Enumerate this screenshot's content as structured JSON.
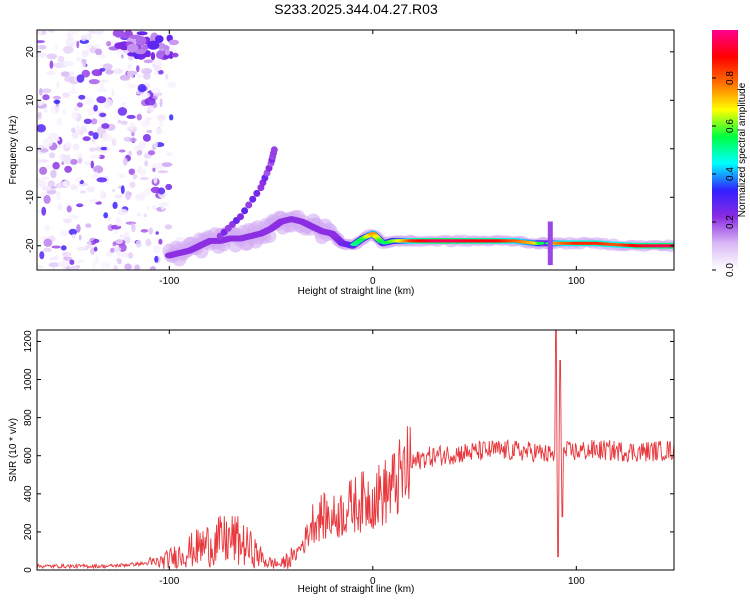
{
  "figure": {
    "title": "S233.2025.344.04.27.R03"
  },
  "chart_data": [
    {
      "type": "heatmap",
      "title": "",
      "xlabel": "Height of straight line (km)",
      "ylabel": "Frequency (Hz)",
      "xlim": [
        -165,
        148
      ],
      "ylim": [
        -25,
        24.5
      ],
      "xticks": [
        -100,
        0,
        100
      ],
      "yticks": [
        -20,
        -10,
        0,
        10,
        20
      ],
      "colorbar": {
        "label": "Normalized spectral amplitude",
        "range": [
          0,
          1
        ],
        "ticks": [
          0.0,
          0.2,
          0.4,
          0.6,
          0.8
        ],
        "colors": [
          "#ffffff",
          "#d9b8f5",
          "#8a2be2",
          "#3020ff",
          "#00ffff",
          "#00ff40",
          "#ffff00",
          "#ff7000",
          "#ff0000",
          "#ff0090"
        ]
      },
      "ridge": {
        "name": "",
        "points": [
          [
            -100,
            -22
          ],
          [
            -95,
            -21.5
          ],
          [
            -90,
            -21
          ],
          [
            -85,
            -20
          ],
          [
            -80,
            -19
          ],
          [
            -75,
            -19
          ],
          [
            -70,
            -18.5
          ],
          [
            -65,
            -18.5
          ],
          [
            -60,
            -18
          ],
          [
            -55,
            -17.5
          ],
          [
            -50,
            -16.5
          ],
          [
            -45,
            -15
          ],
          [
            -40,
            -14.5
          ],
          [
            -35,
            -15
          ],
          [
            -30,
            -16
          ],
          [
            -25,
            -17
          ],
          [
            -20,
            -17.5
          ],
          [
            -15,
            -19.5
          ],
          [
            -10,
            -20
          ],
          [
            -5,
            -18.5
          ],
          [
            0,
            -17.5
          ],
          [
            5,
            -19.5
          ],
          [
            10,
            -19
          ],
          [
            15,
            -19
          ],
          [
            20,
            -19
          ],
          [
            30,
            -19
          ],
          [
            40,
            -19
          ],
          [
            50,
            -19
          ],
          [
            60,
            -19
          ],
          [
            70,
            -19
          ],
          [
            80,
            -19.5
          ],
          [
            85,
            -19.5
          ],
          [
            90,
            -19.5
          ],
          [
            100,
            -19.5
          ],
          [
            110,
            -19.5
          ],
          [
            120,
            -19.8
          ],
          [
            130,
            -20
          ],
          [
            140,
            -20
          ],
          [
            148,
            -20
          ]
        ],
        "amplitude": [
          0.25,
          0.3,
          0.35,
          0.4,
          0.35,
          0.4,
          0.3,
          0.35,
          0.35,
          0.3,
          0.4,
          0.35,
          0.3,
          0.35,
          0.4,
          0.4,
          0.35,
          0.45,
          0.5,
          0.55,
          0.75,
          0.5,
          0.6,
          0.7,
          0.85,
          0.95,
          0.95,
          0.9,
          0.9,
          0.8,
          0.7,
          0.4,
          0.75,
          0.85,
          0.85,
          0.8,
          0.9,
          0.95,
          0.95
        ],
        "branch": [
          [
            -75,
            -18
          ],
          [
            -65,
            -14
          ],
          [
            -55,
            -8
          ],
          [
            -50,
            -3
          ],
          [
            -48,
            0.5
          ]
        ]
      }
    },
    {
      "type": "line",
      "title": "",
      "xlabel": "Height of straight line (km)",
      "ylabel": "SNR (10 * v/v)",
      "xlim": [
        -165,
        148
      ],
      "ylim": [
        0,
        1260
      ],
      "xticks": [
        -100,
        0,
        100
      ],
      "yticks": [
        0,
        200,
        400,
        600,
        800,
        1000,
        1200
      ],
      "series": [
        {
          "name": "",
          "color": "#e8383d",
          "envelope": [
            [
              -165,
              20
            ],
            [
              -130,
              20
            ],
            [
              -105,
              40
            ],
            [
              -95,
              80
            ],
            [
              -85,
              120
            ],
            [
              -75,
              150
            ],
            [
              -68,
              160
            ],
            [
              -60,
              110
            ],
            [
              -52,
              40
            ],
            [
              -45,
              30
            ],
            [
              -38,
              80
            ],
            [
              -33,
              160
            ],
            [
              -30,
              250
            ],
            [
              -25,
              280
            ],
            [
              -20,
              270
            ],
            [
              -15,
              300
            ],
            [
              -10,
              340
            ],
            [
              -5,
              360
            ],
            [
              0,
              380
            ],
            [
              5,
              400
            ],
            [
              10,
              440
            ],
            [
              15,
              500
            ],
            [
              20,
              560
            ],
            [
              25,
              590
            ],
            [
              40,
              610
            ],
            [
              60,
              630
            ],
            [
              80,
              620
            ],
            [
              88,
              600
            ],
            [
              95,
              620
            ],
            [
              110,
              630
            ],
            [
              130,
              620
            ],
            [
              148,
              630
            ]
          ],
          "spikes": [
            [
              90,
              1260
            ],
            [
              91,
              70
            ],
            [
              92,
              1100
            ],
            [
              93,
              280
            ]
          ]
        }
      ]
    }
  ]
}
